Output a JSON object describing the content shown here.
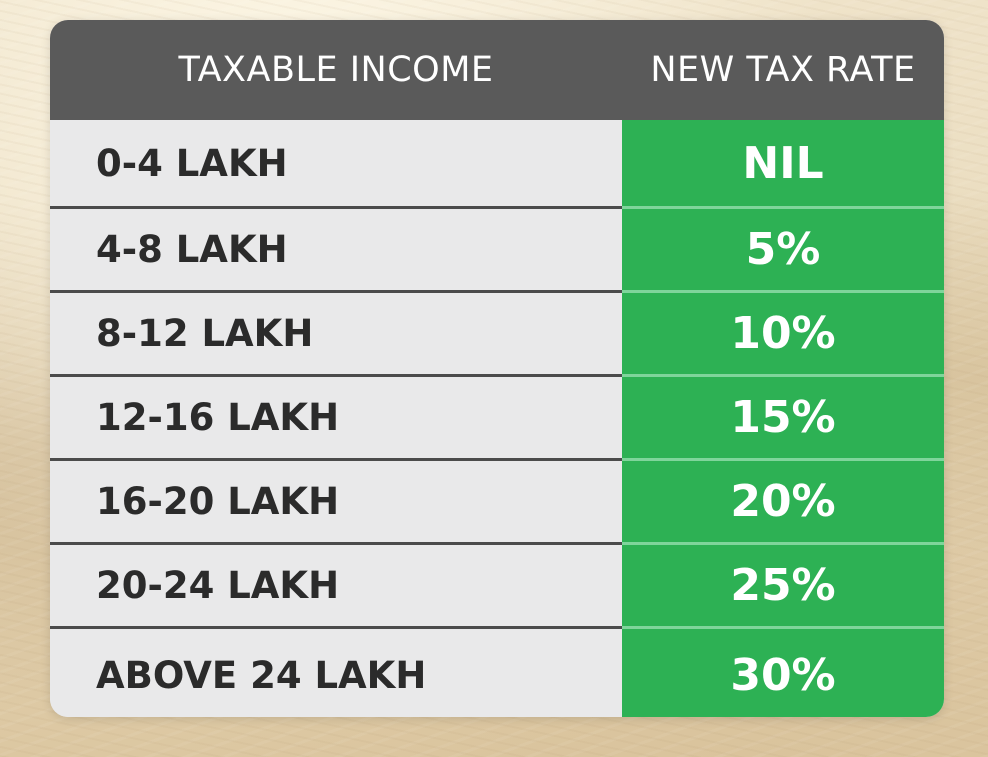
{
  "table": {
    "headers": {
      "income": "TAXABLE INCOME",
      "rate": "NEW TAX RATE"
    },
    "rows": [
      {
        "income": "0-4 LAKH",
        "rate": "NIL"
      },
      {
        "income": "4-8 LAKH",
        "rate": "5%"
      },
      {
        "income": "8-12 LAKH",
        "rate": "10%"
      },
      {
        "income": "12-16 LAKH",
        "rate": "15%"
      },
      {
        "income": "16-20 LAKH",
        "rate": "20%"
      },
      {
        "income": "20-24 LAKH",
        "rate": "25%"
      },
      {
        "income": "ABOVE 24 LAKH",
        "rate": "30%"
      }
    ]
  },
  "colors": {
    "header_bg": "#5a5a5a",
    "income_bg": "#e9e9ea",
    "rate_bg": "#2db154",
    "text_dark": "#2b2b2b",
    "text_light": "#ffffff"
  }
}
